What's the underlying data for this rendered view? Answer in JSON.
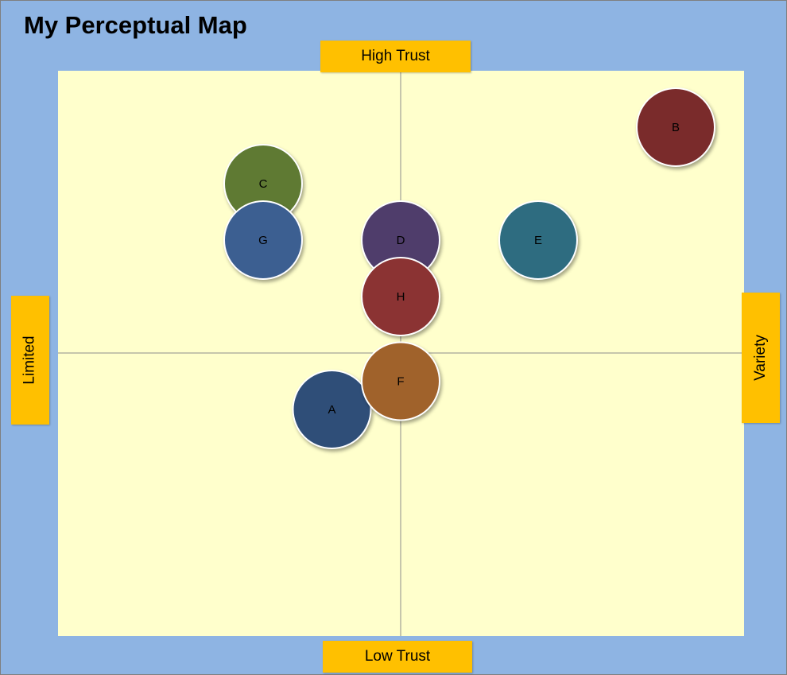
{
  "title": "My Perceptual Map",
  "axis_labels": {
    "top": "High Trust",
    "bottom": "Low Trust",
    "left": "Limited",
    "right": "Variety"
  },
  "chart_data": {
    "type": "scatter",
    "title": "My Perceptual Map",
    "xlabel_negative": "Limited",
    "xlabel_positive": "Variety",
    "ylabel_positive": "High Trust",
    "ylabel_negative": "Low Trust",
    "xlim": [
      -5,
      5
    ],
    "ylim": [
      -5,
      5
    ],
    "grid": false,
    "points": [
      {
        "label": "A",
        "x": -1.0,
        "y": -1.0,
        "color": "#2f4e78"
      },
      {
        "label": "B",
        "x": 4.0,
        "y": 4.0,
        "color": "#7a2b2b"
      },
      {
        "label": "C",
        "x": -2.0,
        "y": 3.0,
        "color": "#5f7a33"
      },
      {
        "label": "D",
        "x": 0.0,
        "y": 2.0,
        "color": "#4f3d6b"
      },
      {
        "label": "E",
        "x": 2.0,
        "y": 2.0,
        "color": "#2e6c80"
      },
      {
        "label": "F",
        "x": 0.0,
        "y": -0.5,
        "color": "#a0622b"
      },
      {
        "label": "G",
        "x": -2.0,
        "y": 2.0,
        "color": "#3c5f91"
      },
      {
        "label": "H",
        "x": 0.0,
        "y": 1.0,
        "color": "#8b3333"
      }
    ]
  }
}
